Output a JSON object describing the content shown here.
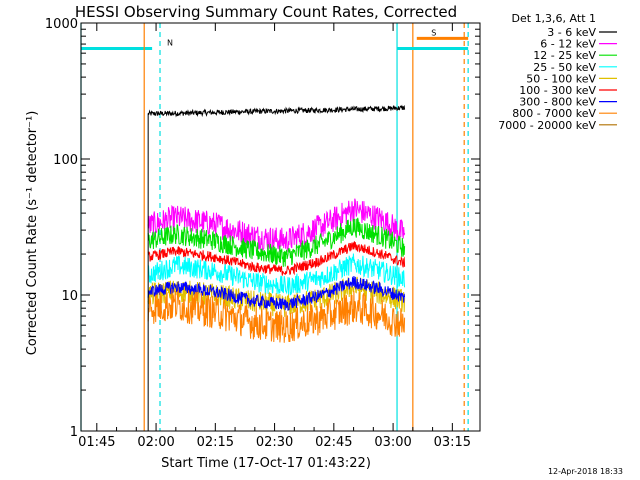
{
  "chart_data": {
    "type": "line",
    "title": "HESSI Observing Summary Count Rates, Corrected",
    "xlabel": "Start Time (17-Oct-17 01:43:22)",
    "ylabel": "Corrected Count Rate (s⁻¹ detector⁻¹)",
    "y_scale": "log",
    "ylim": [
      1,
      1000
    ],
    "xlim": [
      "01:41",
      "03:22"
    ],
    "x_ticks": [
      "01:45",
      "02:00",
      "02:15",
      "02:30",
      "02:45",
      "03:00",
      "03:15"
    ],
    "y_ticks": [
      "1",
      "10",
      "100",
      "1000"
    ],
    "legend_title": "Det 1,3,6, Att 1",
    "legend_position": "outside-right",
    "data_window": [
      "01:57",
      "03:03"
    ],
    "series": [
      {
        "name": "3 - 6 keV",
        "color": "#000000",
        "x": [
          "01:58",
          "02:10",
          "02:20",
          "02:30",
          "02:40",
          "02:50",
          "03:00",
          "03:03"
        ],
        "y": [
          215,
          218,
          222,
          225,
          228,
          232,
          236,
          238
        ],
        "noise": 0.02
      },
      {
        "name": "6 - 12 keV",
        "color": "#ff00ff",
        "x": [
          "01:58",
          "02:05",
          "02:15",
          "02:25",
          "02:33",
          "02:42",
          "02:50",
          "02:57",
          "03:03"
        ],
        "y": [
          32,
          37,
          33,
          27,
          25,
          32,
          43,
          36,
          28
        ],
        "noise": 0.1
      },
      {
        "name": "12 - 25 keV",
        "color": "#00e000",
        "x": [
          "01:58",
          "02:05",
          "02:15",
          "02:25",
          "02:33",
          "02:42",
          "02:50",
          "02:57",
          "03:03"
        ],
        "y": [
          25,
          28,
          25,
          21,
          19,
          24,
          32,
          27,
          22
        ],
        "noise": 0.08
      },
      {
        "name": "25 - 50 keV",
        "color": "#00ffff",
        "x": [
          "01:58",
          "02:05",
          "02:15",
          "02:25",
          "02:33",
          "02:42",
          "02:50",
          "02:57",
          "03:03"
        ],
        "y": [
          14,
          16.5,
          15,
          12.5,
          11.5,
          13.5,
          17,
          15,
          13
        ],
        "noise": 0.08
      },
      {
        "name": "50 - 100 keV",
        "color": "#e0c000",
        "x": [
          "01:58",
          "02:05",
          "02:15",
          "02:25",
          "02:33",
          "02:42",
          "02:50",
          "02:57",
          "03:03"
        ],
        "y": [
          10,
          10.8,
          10,
          8.8,
          8.3,
          9.5,
          11.5,
          10.2,
          9
        ],
        "noise": 0.09
      },
      {
        "name": "100 - 300 keV",
        "color": "#ff0000",
        "x": [
          "01:58",
          "02:05",
          "02:15",
          "02:25",
          "02:33",
          "02:42",
          "02:50",
          "02:57",
          "03:03"
        ],
        "y": [
          19,
          21,
          19,
          16,
          15,
          18,
          23,
          20,
          17
        ],
        "noise": 0.04
      },
      {
        "name": "300 - 800 keV",
        "color": "#0000ff",
        "x": [
          "01:58",
          "02:05",
          "02:15",
          "02:25",
          "02:33",
          "02:42",
          "02:50",
          "02:57",
          "03:03"
        ],
        "y": [
          10.5,
          11.5,
          10.5,
          9,
          8.5,
          10,
          12.5,
          11,
          9.5
        ],
        "noise": 0.05
      },
      {
        "name": "800 - 7000 keV",
        "color": "#ff8000",
        "x": [
          "01:58",
          "02:05",
          "02:15",
          "02:25",
          "02:33",
          "02:42",
          "02:50",
          "02:57",
          "03:03"
        ],
        "y": [
          8,
          8.5,
          7.5,
          6.2,
          5.8,
          6.8,
          8.2,
          7.2,
          6
        ],
        "noise": 0.13
      },
      {
        "name": "7000 - 20000 keV",
        "color": "#b07000",
        "x": [],
        "y": [],
        "noise": 0
      }
    ],
    "annotations": [
      {
        "label": "N",
        "color": "#00e0e0",
        "bar_start": "01:41",
        "bar_end": "01:59",
        "line_solid": "01:41",
        "line_dashed": "02:01",
        "level": 650
      },
      {
        "label": "S",
        "color": "#ff8000",
        "bar_start": "03:06",
        "bar_end": "03:19",
        "line_solid": "03:05",
        "line_dashed": "03:18",
        "level": 770
      },
      {
        "label": "",
        "color": "#00e0e0",
        "bar_start": "03:01",
        "bar_end": "03:19",
        "line_solid": "03:01",
        "line_dashed": "03:19",
        "level": 650
      }
    ]
  },
  "footer": {
    "timestamp": "12-Apr-2018 18:33"
  }
}
